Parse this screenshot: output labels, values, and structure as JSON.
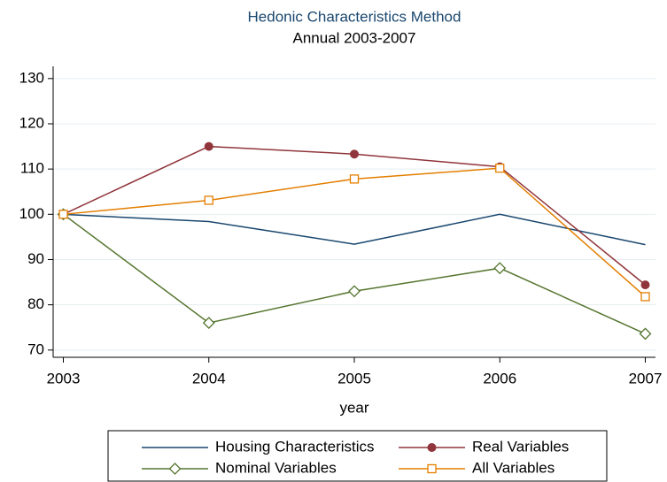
{
  "chart_data": {
    "type": "line",
    "title": "Hedonic Characteristics Method",
    "subtitle": "Annual 2003-2007",
    "xlabel": "year",
    "x": [
      2003,
      2004,
      2005,
      2006,
      2007
    ],
    "series": [
      {
        "name": "Housing Characteristics",
        "color": "#1a476f",
        "marker": "none",
        "values": [
          100,
          98.4,
          93.4,
          100,
          93.3
        ]
      },
      {
        "name": "Real Variables",
        "color": "#90353b",
        "marker": "circle",
        "values": [
          100,
          115.0,
          113.3,
          110.5,
          84.4
        ]
      },
      {
        "name": "Nominal Variables",
        "color": "#55752f",
        "marker": "diamond",
        "values": [
          100,
          76.0,
          83.0,
          88.1,
          73.6
        ]
      },
      {
        "name": "All Variables",
        "color": "#e37e00",
        "marker": "square",
        "values": [
          100,
          103.1,
          107.8,
          110.2,
          81.8
        ]
      }
    ],
    "xlim": [
      2002.93,
      2007.07
    ],
    "xticks": [
      2003,
      2004,
      2005,
      2006,
      2007
    ],
    "ylim": [
      68.4,
      132.7
    ],
    "yticks": [
      70,
      80,
      90,
      100,
      110,
      120,
      130
    ],
    "grid": true,
    "legend": "bottom"
  }
}
